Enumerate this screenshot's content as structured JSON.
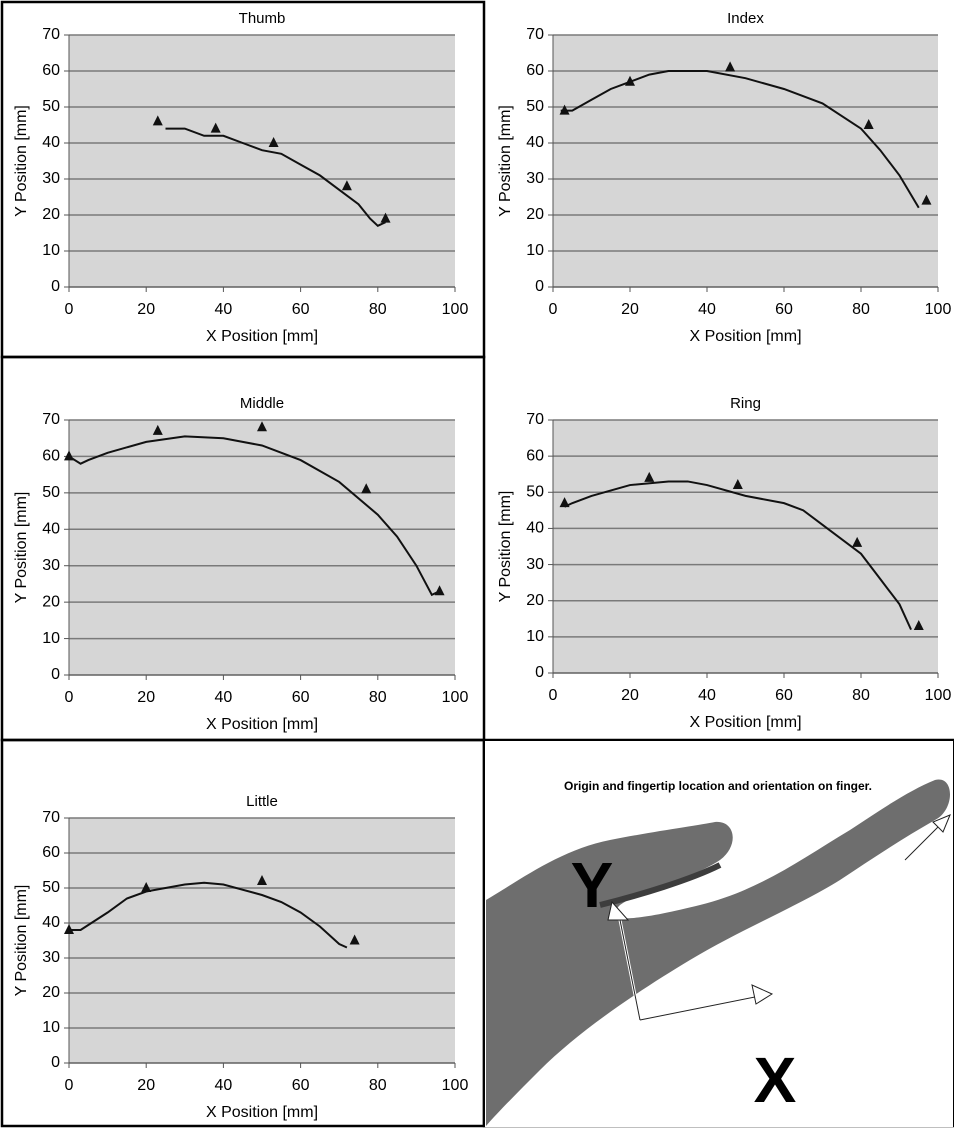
{
  "chart_data": [
    {
      "type": "line",
      "title": "Thumb",
      "xlabel": "X Position [mm]",
      "ylabel": "Y Position [mm]",
      "xlim": [
        0,
        100
      ],
      "ylim": [
        0,
        70
      ],
      "xticks": [
        0,
        20,
        40,
        60,
        80,
        100
      ],
      "yticks": [
        0,
        10,
        20,
        30,
        40,
        50,
        60,
        70
      ],
      "grid": true,
      "series": [
        {
          "color": "#111111",
          "x": [
            25,
            30,
            35,
            40,
            45,
            50,
            55,
            60,
            65,
            70,
            75,
            78,
            80,
            82
          ],
          "values": [
            44,
            44,
            42,
            42,
            40,
            38,
            37,
            34,
            31,
            27,
            23,
            19,
            17,
            18
          ]
        }
      ],
      "markers": {
        "x": [
          23,
          38,
          53,
          72,
          82
        ],
        "y": [
          46,
          44,
          40,
          28,
          19
        ]
      }
    },
    {
      "type": "line",
      "title": "Index",
      "xlabel": "X Position [mm]",
      "ylabel": "Y Position [mm]",
      "xlim": [
        0,
        100
      ],
      "ylim": [
        0,
        70
      ],
      "xticks": [
        0,
        20,
        40,
        60,
        80,
        100
      ],
      "yticks": [
        0,
        10,
        20,
        30,
        40,
        50,
        60,
        70
      ],
      "grid": true,
      "series": [
        {
          "color": "#111111",
          "x": [
            2,
            5,
            10,
            15,
            20,
            25,
            30,
            40,
            50,
            60,
            70,
            80,
            85,
            90,
            95
          ],
          "values": [
            49,
            49,
            52,
            55,
            57,
            59,
            60,
            60,
            58,
            55,
            51,
            44,
            38,
            31,
            22
          ]
        }
      ],
      "markers": {
        "x": [
          3,
          20,
          46,
          82,
          97
        ],
        "y": [
          49,
          57,
          61,
          45,
          24
        ]
      }
    },
    {
      "type": "line",
      "title": "Middle",
      "xlabel": "X Position [mm]",
      "ylabel": "Y Position [mm]",
      "xlim": [
        0,
        100
      ],
      "ylim": [
        0,
        70
      ],
      "xticks": [
        0,
        20,
        40,
        60,
        80,
        100
      ],
      "yticks": [
        0,
        10,
        20,
        30,
        40,
        50,
        60,
        70
      ],
      "grid": true,
      "series": [
        {
          "color": "#111111",
          "x": [
            0,
            3,
            5,
            10,
            20,
            30,
            40,
            50,
            60,
            70,
            80,
            85,
            90,
            94,
            96
          ],
          "values": [
            60,
            58,
            59,
            61,
            64,
            65.5,
            65,
            63,
            59,
            53,
            44,
            38,
            30,
            22,
            23
          ]
        }
      ],
      "markers": {
        "x": [
          0,
          23,
          50,
          77,
          96
        ],
        "y": [
          60,
          67,
          68,
          51,
          23
        ]
      }
    },
    {
      "type": "line",
      "title": "Ring",
      "xlabel": "X Position [mm]",
      "ylabel": "Y Position [mm]",
      "xlim": [
        0,
        100
      ],
      "ylim": [
        0,
        70
      ],
      "xticks": [
        0,
        20,
        40,
        60,
        80,
        100
      ],
      "yticks": [
        0,
        10,
        20,
        30,
        40,
        50,
        60,
        70
      ],
      "grid": true,
      "series": [
        {
          "color": "#111111",
          "x": [
            3,
            5,
            10,
            20,
            30,
            35,
            40,
            50,
            60,
            65,
            70,
            80,
            85,
            90,
            93
          ],
          "values": [
            46,
            47,
            49,
            52,
            53,
            53,
            52,
            49,
            47,
            45,
            41,
            33,
            26,
            19,
            12
          ]
        }
      ],
      "markers": {
        "x": [
          3,
          25,
          48,
          79,
          95
        ],
        "y": [
          47,
          54,
          52,
          36,
          13
        ]
      }
    },
    {
      "type": "line",
      "title": "Little",
      "xlabel": "X Position [mm]",
      "ylabel": "Y Position [mm]",
      "xlim": [
        0,
        100
      ],
      "ylim": [
        0,
        70
      ],
      "xticks": [
        0,
        20,
        40,
        60,
        80,
        100
      ],
      "yticks": [
        0,
        10,
        20,
        30,
        40,
        50,
        60,
        70
      ],
      "grid": true,
      "series": [
        {
          "color": "#111111",
          "x": [
            0,
            3,
            10,
            15,
            20,
            25,
            30,
            35,
            40,
            50,
            55,
            60,
            65,
            70,
            72
          ],
          "values": [
            38,
            38,
            43,
            47,
            49,
            50,
            51,
            51.5,
            51,
            48,
            46,
            43,
            39,
            34,
            33
          ]
        }
      ],
      "markers": {
        "x": [
          0,
          20,
          50,
          74
        ],
        "y": [
          38,
          50,
          52,
          35
        ]
      }
    }
  ],
  "photo_panel": {
    "caption": "Origin and fingertip location and orientation on finger.",
    "y_label": "Y",
    "x_label": "X"
  }
}
